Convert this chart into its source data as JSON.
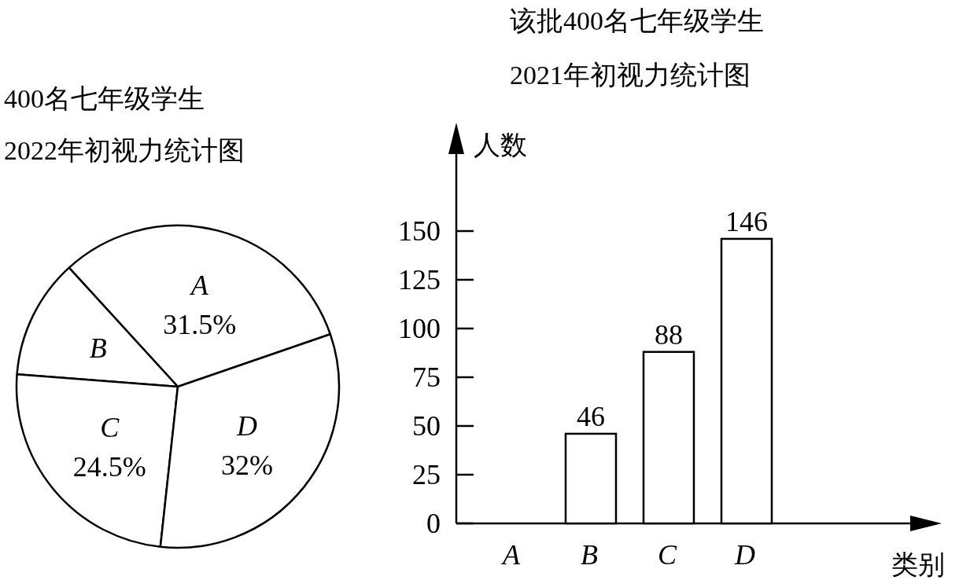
{
  "chart_data": [
    {
      "type": "pie",
      "title": "400名七年级学生",
      "subtitle": "2022年初视力统计图",
      "categories": [
        "A",
        "B",
        "C",
        "D"
      ],
      "values": [
        31.5,
        12,
        24.5,
        32
      ],
      "colors": [
        "#ffffff",
        "#ffffff",
        "#ffffff",
        "#ffffff"
      ],
      "value_labels": [
        "31.5%",
        null,
        "24.5%",
        "32%"
      ]
    },
    {
      "type": "bar",
      "title": "该批400名七年级学生",
      "subtitle": "2021年初视力统计图",
      "categories": [
        "A",
        "B",
        "C",
        "D"
      ],
      "values": [
        null,
        46,
        88,
        146
      ],
      "color": "#ffffff",
      "data_labels": true,
      "xlabel": "类别",
      "ylabel": "人数",
      "ylim": [
        0,
        200
      ],
      "yticks": [
        0,
        25,
        50,
        75,
        100,
        125,
        150
      ]
    }
  ]
}
